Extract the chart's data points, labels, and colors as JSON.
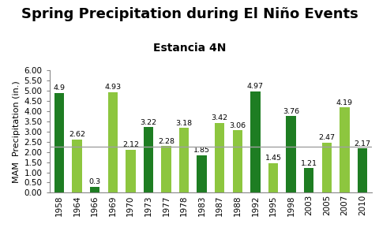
{
  "title": "Spring Precipitation during El Niño Events",
  "subtitle": "Estancia 4N",
  "ylabel": "MAM  Precipitation (in.)",
  "categories": [
    "1958",
    "1964",
    "1966",
    "1969",
    "1970",
    "1973",
    "1977",
    "1978",
    "1983",
    "1987",
    "1988",
    "1992",
    "1995",
    "1998",
    "2003",
    "2005",
    "2007",
    "2010"
  ],
  "values": [
    4.9,
    2.62,
    0.3,
    4.93,
    2.12,
    3.22,
    2.28,
    3.18,
    1.85,
    3.42,
    3.06,
    4.97,
    1.45,
    3.76,
    1.21,
    2.47,
    4.19,
    2.17
  ],
  "colors": [
    "#1e7d22",
    "#8dc63f",
    "#1e7d22",
    "#8dc63f",
    "#8dc63f",
    "#1e7d22",
    "#8dc63f",
    "#8dc63f",
    "#1e7d22",
    "#8dc63f",
    "#8dc63f",
    "#1e7d22",
    "#8dc63f",
    "#1e7d22",
    "#1e7d22",
    "#8dc63f",
    "#8dc63f",
    "#1e7d22"
  ],
  "refline": 2.27,
  "ylim": [
    0.0,
    6.0
  ],
  "ytick_labels": [
    "0.00",
    "0.50",
    "1.00",
    "1.50",
    "2.00",
    "2.50",
    "3.00",
    "3.50",
    "4.00",
    "4.50",
    "5.00",
    "5.50",
    "6.00"
  ],
  "ytick_vals": [
    0.0,
    0.5,
    1.0,
    1.5,
    2.0,
    2.5,
    3.0,
    3.5,
    4.0,
    4.5,
    5.0,
    5.5,
    6.0
  ],
  "title_fontsize": 13,
  "subtitle_fontsize": 10,
  "axis_label_fontsize": 8,
  "tick_fontsize": 7.5,
  "bar_label_fontsize": 6.8,
  "refline_color": "#a0a0a0",
  "bar_width": 0.55
}
